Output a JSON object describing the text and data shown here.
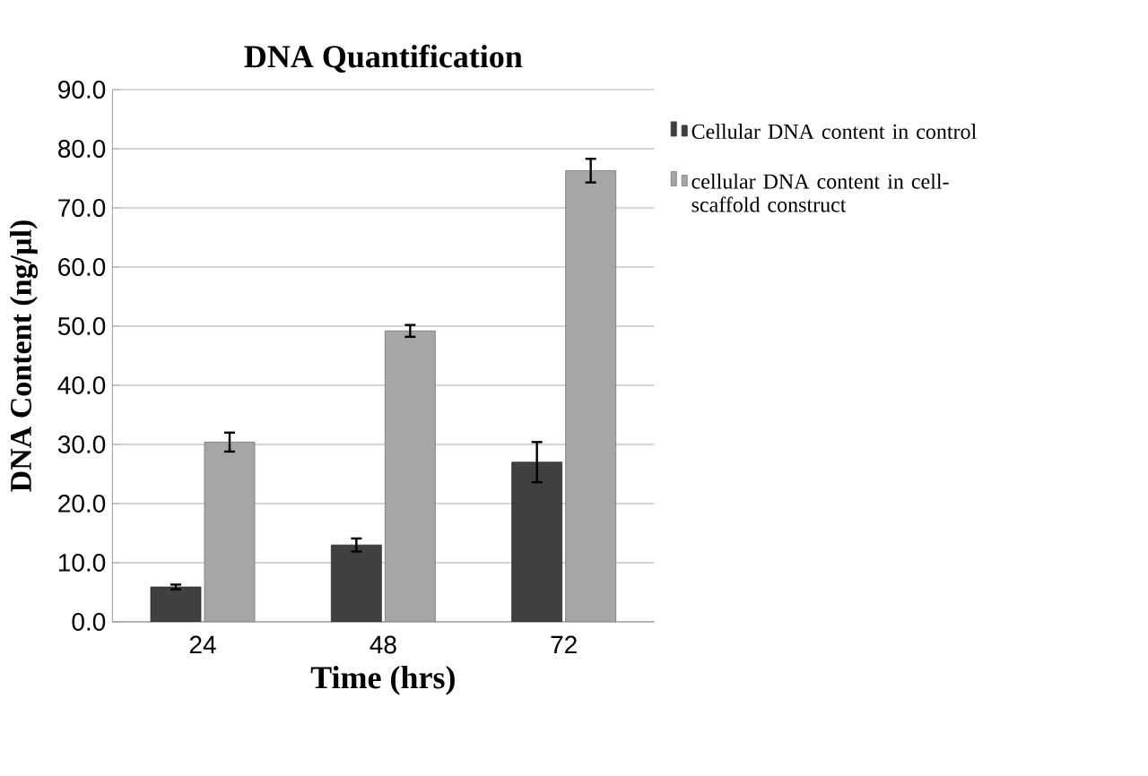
{
  "chart_data": {
    "type": "bar",
    "title": "DNA Quantification",
    "xlabel": "Time (hrs)",
    "ylabel": "DNA Content (ng/µl)",
    "categories": [
      "24",
      "48",
      "72"
    ],
    "series": [
      {
        "name": "Cellular DNA content in control",
        "color": "#404040",
        "values": [
          5.9,
          13.0,
          27.0
        ],
        "errors": [
          0.4,
          1.1,
          3.4
        ]
      },
      {
        "name": "cellular DNA content in cell-scaffold construct",
        "color": "#a6a6a6",
        "values": [
          30.4,
          49.2,
          76.3
        ],
        "errors": [
          1.6,
          1.0,
          2.0
        ]
      }
    ],
    "ylim": [
      0,
      90
    ],
    "yticks": [
      {
        "value": 0,
        "label": "0.0"
      },
      {
        "value": 10,
        "label": "10.0"
      },
      {
        "value": 20,
        "label": "20.0"
      },
      {
        "value": 30,
        "label": "30.0"
      },
      {
        "value": 40,
        "label": "40.0"
      },
      {
        "value": 50,
        "label": "50.0"
      },
      {
        "value": 60,
        "label": "60.0"
      },
      {
        "value": 70,
        "label": "70.0"
      },
      {
        "value": 80,
        "label": "80.0"
      },
      {
        "value": 90,
        "label": "90.0"
      }
    ],
    "grid": "y",
    "legend": "right"
  }
}
